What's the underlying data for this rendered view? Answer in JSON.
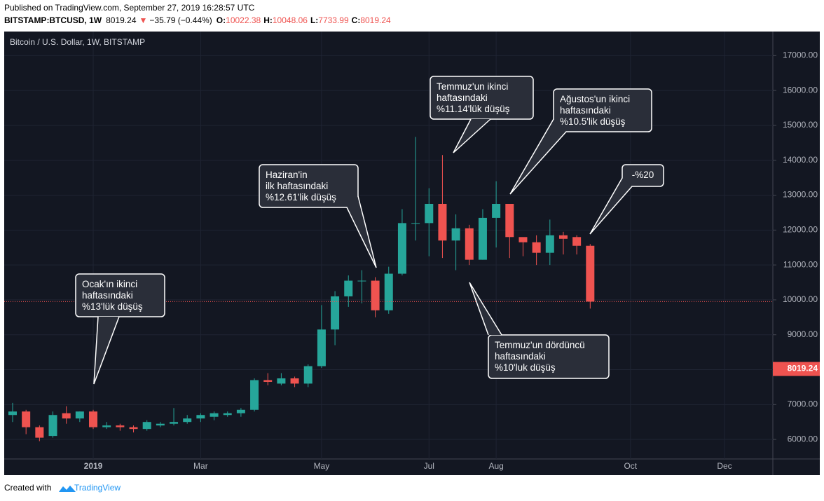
{
  "header": {
    "published": "Published on TradingView.com, September 27, 2019 16:28:57 UTC",
    "symbol": "BITSTAMP:BTCUSD, 1W",
    "price": "8019.24",
    "arrow": "▼",
    "change": "−35.79 (−0.44%)",
    "ohlc": [
      {
        "label": "O:",
        "value": "10022.38"
      },
      {
        "label": "H:",
        "value": "10048.06"
      },
      {
        "label": "L:",
        "value": "7733.99"
      },
      {
        "label": "C:",
        "value": "8019.24"
      }
    ]
  },
  "footer": {
    "created": "Created with",
    "brand": "TradingView"
  },
  "chart_data": {
    "type": "candlestick",
    "title": "Bitcoin / U.S. Dollar, 1W, BITSTAMP",
    "categories": [
      null,
      null,
      null,
      null,
      null,
      null,
      "2019",
      null,
      null,
      null,
      null,
      null,
      null,
      null,
      "Mar",
      null,
      null,
      null,
      null,
      null,
      null,
      null,
      null,
      "May",
      null,
      null,
      null,
      null,
      null,
      null,
      null,
      "Jul",
      null,
      null,
      null,
      null,
      "Aug",
      null,
      null,
      null,
      null,
      null,
      null,
      null,
      null,
      null,
      "Oct",
      null,
      null,
      null,
      null,
      null,
      null,
      "Dec",
      null,
      null,
      null
    ],
    "open": [
      6700,
      6800,
      6350,
      6100,
      6750,
      6600,
      6800,
      6350,
      6400,
      6350,
      6300,
      6400,
      6450,
      6500,
      6600,
      6650,
      6700,
      6750,
      6850,
      7700,
      7600,
      7750,
      7600,
      8100,
      9150,
      10100,
      10550,
      10550,
      9700,
      10750,
      12200,
      12200,
      12750,
      11700,
      12050,
      11150,
      12350,
      12750,
      11800,
      11650,
      11350,
      11850,
      11800,
      11550,
      null,
      null,
      null,
      null,
      null,
      null,
      null,
      null,
      null,
      null,
      null,
      null,
      null
    ],
    "high": [
      7050,
      6850,
      6400,
      6800,
      6950,
      6800,
      6850,
      6500,
      6450,
      6400,
      6550,
      6500,
      6900,
      6700,
      6750,
      6800,
      6800,
      6900,
      7750,
      7900,
      7900,
      7800,
      8150,
      9850,
      10250,
      10700,
      10850,
      10650,
      10950,
      12600,
      14670,
      13200,
      14150,
      12450,
      12150,
      12600,
      13400,
      12750,
      11750,
      11850,
      12300,
      11950,
      11850,
      11600,
      null,
      null,
      null,
      null,
      null,
      null,
      null,
      null,
      null,
      null,
      null,
      null,
      null
    ],
    "low": [
      6500,
      6150,
      5950,
      6050,
      6450,
      6500,
      6300,
      6300,
      6250,
      6200,
      6250,
      6350,
      6400,
      6450,
      6500,
      6550,
      6650,
      6650,
      6800,
      7550,
      7550,
      7500,
      7500,
      8050,
      8700,
      9800,
      9900,
      9500,
      9600,
      10700,
      11700,
      11250,
      11200,
      10850,
      11000,
      11150,
      11500,
      11200,
      11250,
      11000,
      11000,
      11300,
      11300,
      9750,
      null,
      null,
      null,
      null,
      null,
      null,
      null,
      null,
      null,
      null,
      null,
      null,
      null
    ],
    "close": [
      6800,
      6350,
      6050,
      6700,
      6600,
      6800,
      6350,
      6400,
      6350,
      6300,
      6500,
      6450,
      6500,
      6600,
      6700,
      6750,
      6750,
      6850,
      7700,
      7650,
      7750,
      7600,
      8100,
      9150,
      10100,
      10550,
      10550,
      9700,
      10750,
      12200,
      12200,
      12750,
      11700,
      12050,
      11150,
      12350,
      12750,
      11800,
      11650,
      11350,
      11850,
      11750,
      11550,
      9950,
      null,
      null,
      null,
      null,
      null,
      null,
      null,
      null,
      null,
      null,
      null,
      null,
      null
    ],
    "up_color": "#26a69a",
    "down_color": "#ef5350",
    "ylim": [
      5440,
      17690
    ],
    "yticks": [
      {
        "value": 6000,
        "label": "6000.00"
      },
      {
        "value": 7000,
        "label": "7000.00"
      },
      {
        "value": 8000,
        "label": "8000.00"
      },
      {
        "value": 9000,
        "label": "9000.00"
      },
      {
        "value": 10000,
        "label": "10000.00"
      },
      {
        "value": 11000,
        "label": "11000.00"
      },
      {
        "value": 12000,
        "label": "12000.00"
      },
      {
        "value": 13000,
        "label": "13000.00"
      },
      {
        "value": 14000,
        "label": "14000.00"
      },
      {
        "value": 15000,
        "label": "15000.00"
      },
      {
        "value": 16000,
        "label": "16000.00"
      },
      {
        "value": 17000,
        "label": "17000.00"
      }
    ],
    "last_price": 8019.24,
    "grid": true,
    "annotations": [
      {
        "lines": [
          "Ocak'ın ikinci",
          "haftasındaki",
          "%13'lük düşüş"
        ]
      },
      {
        "lines": [
          "Haziran'in",
          "ilk haftasındaki",
          "%12.61'lik düşüş"
        ]
      },
      {
        "lines": [
          "Temmuz'un ikinci",
          "haftasındaki",
          "%11.14'lük düşüş"
        ]
      },
      {
        "lines": [
          "Ağustos'un ikinci",
          "haftasındaki",
          "%10.5'lik düşüş"
        ]
      },
      {
        "lines": [
          "-%20"
        ]
      },
      {
        "lines": [
          "Temmuz'un dördüncü",
          "haftasındaki",
          "%10'luk düşüş"
        ]
      }
    ]
  }
}
